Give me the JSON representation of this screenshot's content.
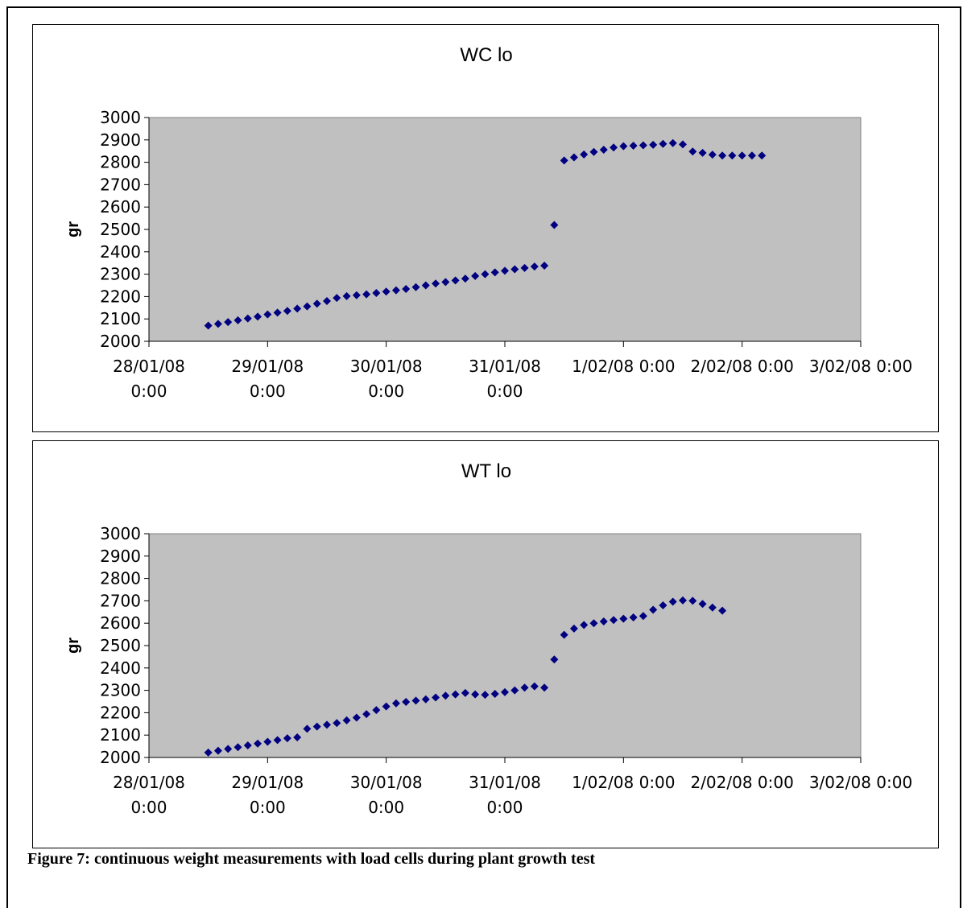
{
  "caption": "Figure 7: continuous weight measurements with load cells during plant growth test",
  "chart_data": [
    {
      "type": "scatter",
      "title": "WC lo",
      "xlabel": "",
      "ylabel": "gr",
      "ylim": [
        2000,
        3000
      ],
      "xlim": [
        "28/01/08 0:00",
        "3/02/08 0:00"
      ],
      "y_ticks": [
        "3000",
        "2900",
        "2800",
        "2700",
        "2600",
        "2500",
        "2400",
        "2300",
        "2200",
        "2100",
        "2000"
      ],
      "x_ticks": [
        [
          "28/01/08",
          "0:00"
        ],
        [
          "29/01/08",
          "0:00"
        ],
        [
          "30/01/08",
          "0:00"
        ],
        [
          "31/01/08",
          "0:00"
        ],
        [
          "1/02/08 0:00",
          ""
        ],
        [
          "2/02/08 0:00",
          ""
        ],
        [
          "3/02/08 0:00",
          ""
        ]
      ],
      "grid": false,
      "plot_background": "#c0c0c0",
      "marker": "diamond",
      "marker_color": "#000080",
      "series": [
        {
          "x": [
            "28/01/08 12:00",
            "28/01/08 14:00",
            "28/01/08 16:00",
            "28/01/08 18:00",
            "28/01/08 20:00",
            "28/01/08 22:00",
            "29/01/08 0:00",
            "29/01/08 2:00",
            "29/01/08 4:00",
            "29/01/08 6:00",
            "29/01/08 8:00",
            "29/01/08 10:00",
            "29/01/08 12:00",
            "29/01/08 14:00",
            "29/01/08 16:00",
            "29/01/08 18:00",
            "29/01/08 20:00",
            "29/01/08 22:00",
            "30/01/08 0:00",
            "30/01/08 2:00",
            "30/01/08 4:00",
            "30/01/08 6:00",
            "30/01/08 8:00",
            "30/01/08 10:00",
            "30/01/08 12:00",
            "30/01/08 14:00",
            "30/01/08 16:00",
            "30/01/08 18:00",
            "30/01/08 20:00",
            "30/01/08 22:00",
            "31/01/08 0:00",
            "31/01/08 2:00",
            "31/01/08 4:00",
            "31/01/08 6:00",
            "31/01/08 8:00",
            "31/01/08 10:00",
            "31/01/08 12:00",
            "31/01/08 14:00",
            "31/01/08 16:00",
            "31/01/08 18:00",
            "31/01/08 20:00",
            "31/01/08 22:00",
            "1/02/08 0:00",
            "1/02/08 2:00",
            "1/02/08 4:00",
            "1/02/08 6:00",
            "1/02/08 8:00",
            "1/02/08 10:00",
            "1/02/08 12:00",
            "1/02/08 14:00",
            "1/02/08 16:00",
            "1/02/08 18:00",
            "1/02/08 20:00",
            "1/02/08 22:00",
            "2/02/08 0:00",
            "2/02/08 2:00",
            "2/02/08 4:00"
          ],
          "y": [
            2070,
            2078,
            2086,
            2094,
            2102,
            2110,
            2120,
            2128,
            2136,
            2146,
            2156,
            2168,
            2180,
            2194,
            2202,
            2206,
            2210,
            2216,
            2222,
            2228,
            2234,
            2242,
            2250,
            2258,
            2265,
            2272,
            2280,
            2292,
            2300,
            2308,
            2315,
            2322,
            2328,
            2334,
            2338,
            2520,
            2808,
            2822,
            2835,
            2846,
            2856,
            2866,
            2872,
            2874,
            2876,
            2878,
            2882,
            2886,
            2880,
            2848,
            2842,
            2834,
            2830,
            2830,
            2830,
            2830,
            2830
          ]
        }
      ]
    },
    {
      "type": "scatter",
      "title": "WT lo",
      "xlabel": "",
      "ylabel": "gr",
      "ylim": [
        2000,
        3000
      ],
      "xlim": [
        "28/01/08 0:00",
        "3/02/08 0:00"
      ],
      "y_ticks": [
        "3000",
        "2900",
        "2800",
        "2700",
        "2600",
        "2500",
        "2400",
        "2300",
        "2200",
        "2100",
        "2000"
      ],
      "x_ticks": [
        [
          "28/01/08",
          "0:00"
        ],
        [
          "29/01/08",
          "0:00"
        ],
        [
          "30/01/08",
          "0:00"
        ],
        [
          "31/01/08",
          "0:00"
        ],
        [
          "1/02/08 0:00",
          ""
        ],
        [
          "2/02/08 0:00",
          ""
        ],
        [
          "3/02/08 0:00",
          ""
        ]
      ],
      "grid": false,
      "plot_background": "#c0c0c0",
      "marker": "diamond",
      "marker_color": "#000080",
      "series": [
        {
          "x": [
            "28/01/08 12:00",
            "28/01/08 14:00",
            "28/01/08 16:00",
            "28/01/08 18:00",
            "28/01/08 20:00",
            "28/01/08 22:00",
            "29/01/08 0:00",
            "29/01/08 2:00",
            "29/01/08 4:00",
            "29/01/08 6:00",
            "29/01/08 8:00",
            "29/01/08 10:00",
            "29/01/08 12:00",
            "29/01/08 14:00",
            "29/01/08 16:00",
            "29/01/08 18:00",
            "29/01/08 20:00",
            "29/01/08 22:00",
            "30/01/08 0:00",
            "30/01/08 2:00",
            "30/01/08 4:00",
            "30/01/08 6:00",
            "30/01/08 8:00",
            "30/01/08 10:00",
            "30/01/08 12:00",
            "30/01/08 14:00",
            "30/01/08 16:00",
            "30/01/08 18:00",
            "30/01/08 20:00",
            "30/01/08 22:00",
            "31/01/08 0:00",
            "31/01/08 2:00",
            "31/01/08 4:00",
            "31/01/08 6:00",
            "31/01/08 8:00",
            "31/01/08 10:00",
            "31/01/08 12:00",
            "31/01/08 14:00",
            "31/01/08 16:00",
            "31/01/08 18:00",
            "31/01/08 20:00",
            "31/01/08 22:00",
            "1/02/08 0:00",
            "1/02/08 2:00",
            "1/02/08 4:00",
            "1/02/08 6:00",
            "1/02/08 8:00",
            "1/02/08 10:00",
            "1/02/08 12:00",
            "1/02/08 14:00",
            "1/02/08 16:00",
            "1/02/08 18:00",
            "1/02/08 20:00"
          ],
          "y": [
            2022,
            2030,
            2038,
            2046,
            2054,
            2062,
            2070,
            2078,
            2086,
            2090,
            2128,
            2138,
            2146,
            2154,
            2166,
            2178,
            2194,
            2212,
            2228,
            2242,
            2248,
            2254,
            2260,
            2268,
            2276,
            2282,
            2288,
            2282,
            2280,
            2284,
            2292,
            2300,
            2312,
            2318,
            2312,
            2438,
            2548,
            2576,
            2592,
            2600,
            2608,
            2614,
            2620,
            2626,
            2632,
            2660,
            2680,
            2696,
            2702,
            2700,
            2686,
            2670,
            2656
          ]
        }
      ]
    }
  ]
}
